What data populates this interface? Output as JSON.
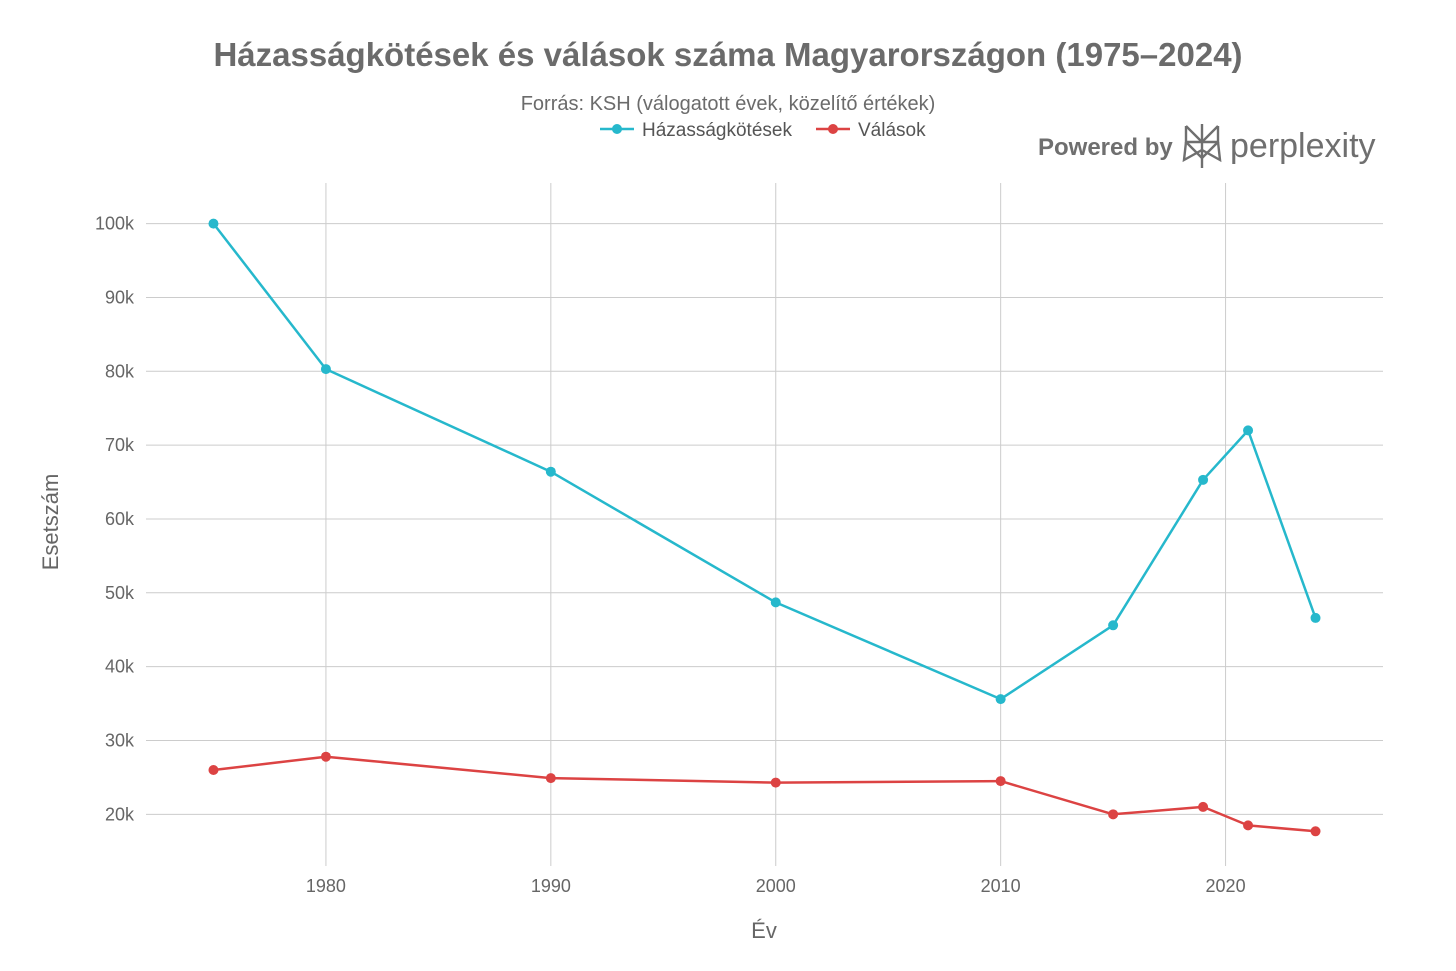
{
  "chart_data": {
    "type": "line",
    "title": "Házasságkötések és válások száma Magyarországon (1975–2024)",
    "subtitle": "Forrás: KSH (válogatott évek, közelítő értékek)",
    "xlabel": "Év",
    "ylabel": "Esetszám",
    "x": [
      1975,
      1980,
      1990,
      2000,
      2010,
      2015,
      2019,
      2021,
      2024
    ],
    "xlim": [
      1972,
      2027
    ],
    "ylim": [
      13000,
      105500
    ],
    "x_ticks": [
      1980,
      1990,
      2000,
      2010,
      2020
    ],
    "y_ticks": [
      20000,
      30000,
      40000,
      50000,
      60000,
      70000,
      80000,
      90000,
      100000
    ],
    "y_tick_labels": [
      "20k",
      "30k",
      "40k",
      "50k",
      "60k",
      "70k",
      "80k",
      "90k",
      "100k"
    ],
    "grid": true,
    "legend_position": "top",
    "series": [
      {
        "name": "Házasságkötések",
        "color": "#26b8cc",
        "values": [
          100000,
          80300,
          66400,
          48700,
          35600,
          45600,
          65300,
          72000,
          46600
        ]
      },
      {
        "name": "Válások",
        "color": "#dc4343",
        "values": [
          26000,
          27800,
          24900,
          24300,
          24500,
          20000,
          21000,
          18500,
          17700
        ]
      }
    ]
  },
  "watermark": {
    "powered_by": "Powered by",
    "brand": "perplexity",
    "logo_icon": "perplexity-logo-icon"
  }
}
